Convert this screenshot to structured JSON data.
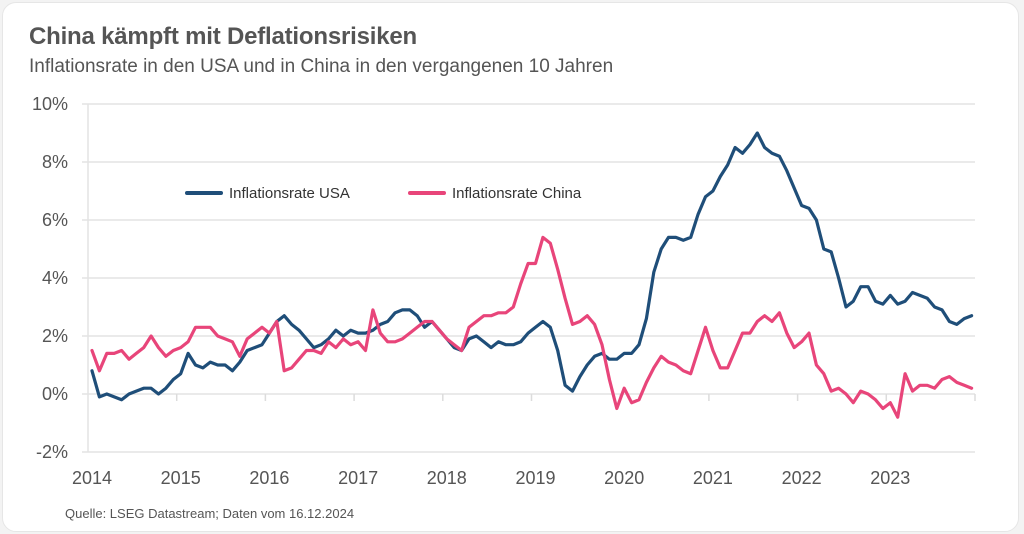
{
  "header": {
    "title": "China kämpft mit Deflationsrisiken",
    "subtitle": "Inflationsrate in den USA und in China in den vergangenen 10 Jahren"
  },
  "footer": {
    "source": "Quelle: LSEG Datastream; Daten vom 16.12.2024"
  },
  "chart_data": {
    "type": "line",
    "title": "China kämpft mit Deflationsrisiken",
    "subtitle": "Inflationsrate in den USA und in China in den vergangenen 10 Jahren",
    "xlabel": "",
    "ylabel": "",
    "ylim": [
      -2,
      10
    ],
    "yticks": [
      -2,
      0,
      2,
      4,
      6,
      8,
      10
    ],
    "ytick_labels": [
      "-2%",
      "0%",
      "2%",
      "4%",
      "6%",
      "8%",
      "10%"
    ],
    "xticks": [
      "2014",
      "2015",
      "2016",
      "2017",
      "2018",
      "2019",
      "2020",
      "2021",
      "2022",
      "2023"
    ],
    "x_frequency": "monthly",
    "points_per_series": 120,
    "grid": "horizontal",
    "legend_position": "top-left",
    "series": [
      {
        "name": "Inflationsrate USA",
        "color": "#1f4e79",
        "values": [
          0.8,
          -0.1,
          0.0,
          -0.1,
          -0.2,
          0.0,
          0.1,
          0.2,
          0.2,
          0.0,
          0.2,
          0.5,
          0.7,
          1.4,
          1.0,
          0.9,
          1.1,
          1.0,
          1.0,
          0.8,
          1.1,
          1.5,
          1.6,
          1.7,
          2.1,
          2.5,
          2.7,
          2.4,
          2.2,
          1.9,
          1.6,
          1.7,
          1.9,
          2.2,
          2.0,
          2.2,
          2.1,
          2.1,
          2.2,
          2.4,
          2.5,
          2.8,
          2.9,
          2.9,
          2.7,
          2.3,
          2.5,
          2.2,
          1.9,
          1.6,
          1.5,
          1.9,
          2.0,
          1.8,
          1.6,
          1.8,
          1.7,
          1.7,
          1.8,
          2.1,
          2.3,
          2.5,
          2.3,
          1.5,
          0.3,
          0.1,
          0.6,
          1.0,
          1.3,
          1.4,
          1.2,
          1.2,
          1.4,
          1.4,
          1.7,
          2.6,
          4.2,
          5.0,
          5.4,
          5.4,
          5.3,
          5.4,
          6.2,
          6.8,
          7.0,
          7.5,
          7.9,
          8.5,
          8.3,
          8.6,
          9.0,
          8.5,
          8.3,
          8.2,
          7.7,
          7.1,
          6.5,
          6.4,
          6.0,
          5.0,
          4.9,
          4.0,
          3.0,
          3.2,
          3.7,
          3.7,
          3.2,
          3.1,
          3.4,
          3.1,
          3.2,
          3.5,
          3.4,
          3.3,
          3.0,
          2.9,
          2.5,
          2.4,
          2.6,
          2.7
        ]
      },
      {
        "name": "Inflationsrate China",
        "color": "#e8457a",
        "values": [
          1.5,
          0.8,
          1.4,
          1.4,
          1.5,
          1.2,
          1.4,
          1.6,
          2.0,
          1.6,
          1.3,
          1.5,
          1.6,
          1.8,
          2.3,
          2.3,
          2.3,
          2.0,
          1.9,
          1.8,
          1.3,
          1.9,
          2.1,
          2.3,
          2.1,
          2.5,
          0.8,
          0.9,
          1.2,
          1.5,
          1.5,
          1.4,
          1.8,
          1.6,
          1.9,
          1.7,
          1.8,
          1.5,
          2.9,
          2.1,
          1.8,
          1.8,
          1.9,
          2.1,
          2.3,
          2.5,
          2.5,
          2.2,
          1.9,
          1.7,
          1.5,
          2.3,
          2.5,
          2.7,
          2.7,
          2.8,
          2.8,
          3.0,
          3.8,
          4.5,
          4.5,
          5.4,
          5.2,
          4.3,
          3.3,
          2.4,
          2.5,
          2.7,
          2.4,
          1.7,
          0.5,
          -0.5,
          0.2,
          -0.3,
          -0.2,
          0.4,
          0.9,
          1.3,
          1.1,
          1.0,
          0.8,
          0.7,
          1.5,
          2.3,
          1.5,
          0.9,
          0.9,
          1.5,
          2.1,
          2.1,
          2.5,
          2.7,
          2.5,
          2.8,
          2.1,
          1.6,
          1.8,
          2.1,
          1.0,
          0.7,
          0.1,
          0.2,
          0.0,
          -0.3,
          0.1,
          0.0,
          -0.2,
          -0.5,
          -0.3,
          -0.8,
          0.7,
          0.1,
          0.3,
          0.3,
          0.2,
          0.5,
          0.6,
          0.4,
          0.3,
          0.2
        ]
      }
    ]
  }
}
